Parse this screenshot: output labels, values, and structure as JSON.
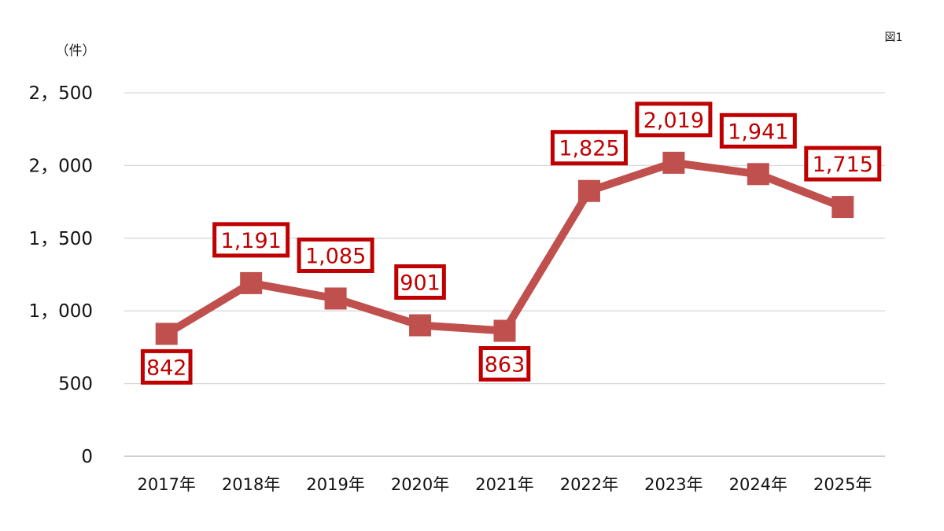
{
  "figure_label": "図1",
  "chart_data": {
    "type": "line",
    "ylabel": "（件）",
    "categories": [
      "2017年",
      "2018年",
      "2019年",
      "2020年",
      "2021年",
      "2022年",
      "2023年",
      "2024年",
      "2025年"
    ],
    "series": [
      {
        "values": [
          842,
          1191,
          1085,
          901,
          863,
          1825,
          2019,
          1941,
          1715
        ],
        "labels": [
          "842",
          "1,191",
          "1,085",
          "901",
          "863",
          "1,825",
          "2,019",
          "1,941",
          "1,715"
        ],
        "label_positions": [
          "below",
          "above",
          "above",
          "above",
          "below",
          "above",
          "above",
          "above",
          "above"
        ]
      }
    ],
    "ylim": [
      0,
      2500
    ],
    "yticks": [
      0,
      500,
      1000,
      1500,
      2000,
      2500
    ],
    "ytick_labels": [
      "0",
      "500",
      "1，000",
      "1，500",
      "2，000",
      "2，500"
    ],
    "grid": true,
    "line_color": "#c0504d",
    "label_border_color": "#c00000",
    "label_text_color": "#c00000"
  }
}
